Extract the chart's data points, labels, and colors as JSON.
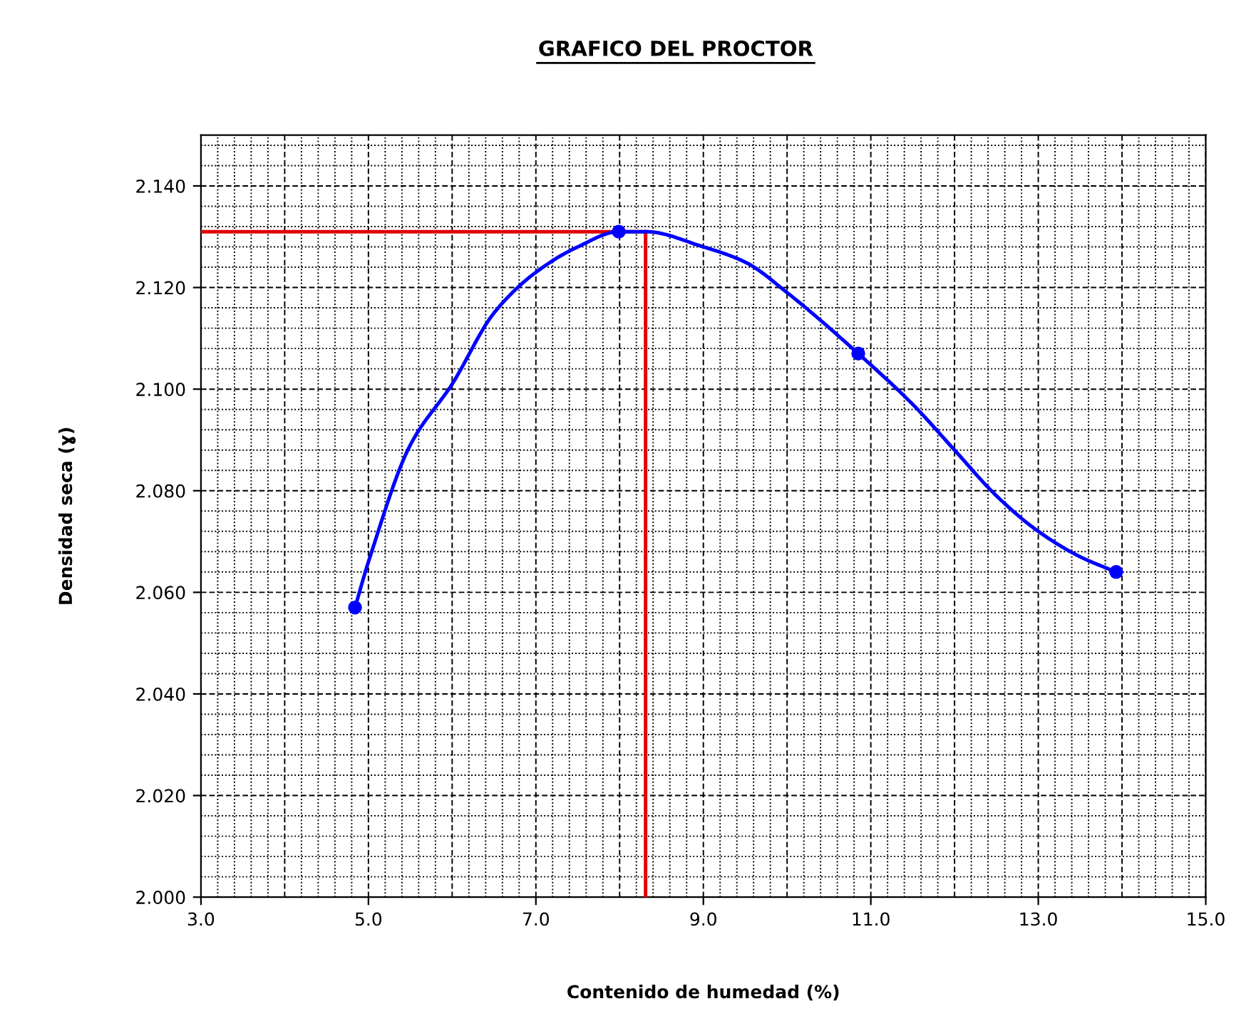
{
  "chart_data": {
    "type": "scatter",
    "title": "GRAFICO DEL PROCTOR",
    "xlabel": "Contenido de humedad (%)",
    "ylabel": "Densidad seca (ɣ)",
    "series": [
      {
        "type": "line",
        "color": "#0000ff",
        "marker": "none",
        "line_style": "solid",
        "x": [
          4.84,
          5.0,
          5.5,
          6.0,
          6.5,
          7.0,
          7.5,
          7.99,
          8.31,
          9.0,
          9.5,
          10.0,
          10.85,
          11.5,
          12.0,
          12.5,
          13.0,
          13.5,
          13.93
        ],
        "values": [
          2.057,
          2.066,
          2.089,
          2.101,
          2.115,
          2.123,
          2.128,
          2.131,
          2.131,
          2.128,
          2.125,
          2.119,
          2.107,
          2.097,
          2.088,
          2.079,
          2.072,
          2.067,
          2.064
        ]
      },
      {
        "color": "#0000ff",
        "marker": "circle",
        "x": [
          4.84,
          7.99,
          10.85,
          13.93
        ],
        "values": [
          2.057,
          2.131,
          2.107,
          2.064
        ]
      }
    ],
    "ref_lines": [
      {
        "axis": "y",
        "value": 2.131,
        "color": "#e00000"
      },
      {
        "axis": "x",
        "value": 8.31,
        "color": "#e00000"
      }
    ],
    "xlim": [
      3,
      15
    ],
    "xticks": [
      {
        "value": 3,
        "label": "3.0"
      },
      {
        "value": 5,
        "label": "5.0"
      },
      {
        "value": 7,
        "label": "7.0"
      },
      {
        "value": 9,
        "label": "9.0"
      },
      {
        "value": 11,
        "label": "11.0"
      },
      {
        "value": 13,
        "label": "13.0"
      },
      {
        "value": 15,
        "label": "15.0"
      }
    ],
    "ylim": [
      2.0,
      2.15
    ],
    "yticks": [
      {
        "value": 2.0,
        "label": "2.000"
      },
      {
        "value": 2.02,
        "label": "2.020"
      },
      {
        "value": 2.04,
        "label": "2.040"
      },
      {
        "value": 2.06,
        "label": "2.060"
      },
      {
        "value": 2.08,
        "label": "2.080"
      },
      {
        "value": 2.1,
        "label": "2.100"
      },
      {
        "value": 2.12,
        "label": "2.120"
      },
      {
        "value": 2.14,
        "label": "2.140"
      }
    ],
    "grid": true,
    "legend": false
  }
}
